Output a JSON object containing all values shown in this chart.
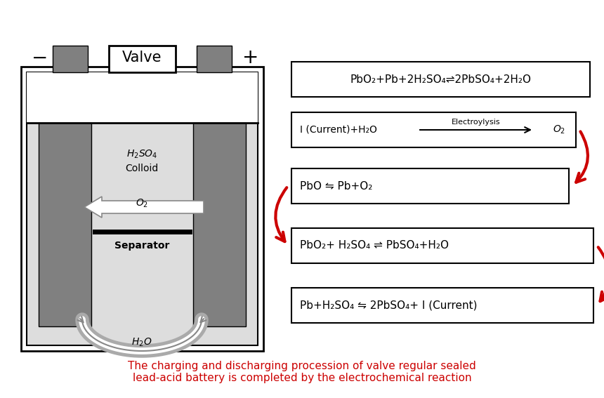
{
  "bg_color": "#ffffff",
  "title_text": "The charging and discharging procession of valve regular sealed\nlead-acid battery is completed by the electrochemical reaction",
  "title_color": "#cc0000",
  "title_fontsize": 11,
  "gray_color": "#808080",
  "dark_gray": "#555555",
  "light_gray": "#cccccc",
  "box1_text": "PbO₂+Pb+2H₂SO₄⇌2PbSO₄+2H₂O",
  "box2_left": "I (Current)+H₂O",
  "box2_arrow_label": "Electroylysis",
  "box2_right": "O₂",
  "box3_text": "PbO ⇋ Pb+O₂",
  "box4_text": "PbO₂+ H₂SO₄ ⇌ PbSO₄+H₂O",
  "box5_text": "Pb+H₂SO₄ ⇋ 2PbSO₄+ I (Current)"
}
